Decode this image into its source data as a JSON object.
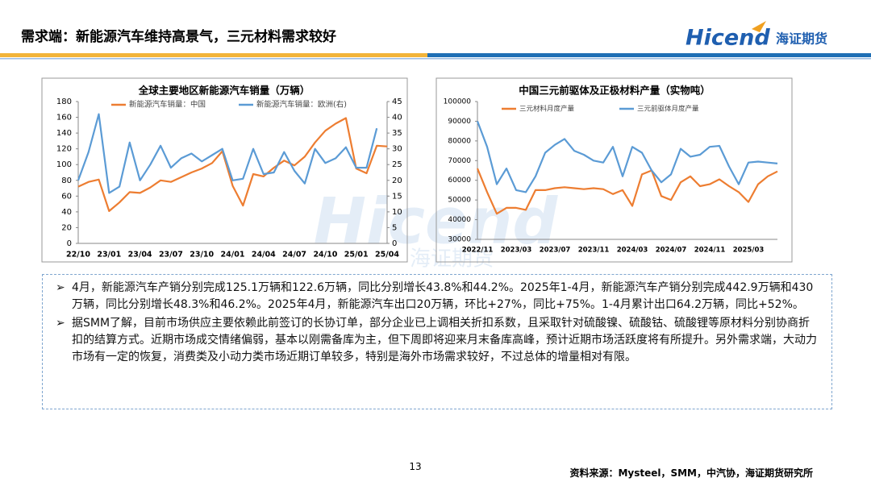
{
  "header": {
    "title": "需求端：新能源汽车维持高景气，三元材料需求较好",
    "logo": "Hicend",
    "logo_cn": "海证期货"
  },
  "watermark": {
    "en": "Hicend",
    "cn": "海证期货"
  },
  "chart_data": [
    {
      "type": "line",
      "title": "全球主要地区新能源汽车销量（万辆）",
      "categories": [
        "22/10",
        null,
        null,
        "23/01",
        null,
        null,
        "23/04",
        null,
        null,
        "23/07",
        null,
        null,
        "23/10",
        null,
        null,
        "24/01",
        null,
        null,
        "24/04",
        null,
        null,
        "24/07",
        null,
        null,
        "24/10",
        null,
        null,
        "25/01",
        null,
        null,
        "25/04"
      ],
      "series": [
        {
          "name": "新能源汽车销量：中国",
          "color": "#ed7d31",
          "values": [
            72,
            78,
            81,
            41,
            52,
            65,
            64,
            71,
            80,
            78,
            84,
            90,
            95,
            102,
            117,
            73,
            48,
            88,
            85,
            96,
            105,
            99,
            110,
            128,
            143,
            152,
            159,
            95,
            89,
            124,
            123
          ]
        },
        {
          "name": "新能源汽车销量：欧洲(右)",
          "color": "#5b9bd5",
          "axis": "y2",
          "values": [
            20,
            29,
            41,
            16,
            18,
            32,
            20,
            25,
            31,
            24,
            27,
            28.5,
            26,
            28,
            30,
            20,
            20.5,
            30,
            22,
            22.5,
            29,
            23,
            19,
            30,
            25.5,
            27,
            30.5,
            24,
            24,
            36.5,
            null
          ]
        }
      ],
      "ylim": [
        0,
        180
      ],
      "yticks": [
        0,
        20,
        40,
        60,
        80,
        100,
        120,
        140,
        160,
        180
      ],
      "y2lim": [
        0,
        45
      ],
      "y2ticks": [
        0,
        5,
        10,
        15,
        20,
        25,
        30,
        35,
        40,
        45
      ],
      "grid": false
    },
    {
      "type": "line",
      "title": "中国三元前驱体及正极材料产量（实物吨）",
      "categories": [
        "2022/11",
        null,
        null,
        null,
        "2023/03",
        null,
        null,
        null,
        "2023/07",
        null,
        null,
        null,
        "2023/11",
        null,
        null,
        null,
        "2024/03",
        null,
        null,
        null,
        "2024/07",
        null,
        null,
        null,
        "2024/11",
        null,
        null,
        null,
        "2025/03",
        null,
        null,
        null
      ],
      "series": [
        {
          "name": "三元材料月度产量",
          "color": "#ed7d31",
          "values": [
            66000,
            54000,
            43000,
            46000,
            46000,
            45000,
            55000,
            55000,
            56000,
            56500,
            56000,
            55500,
            56000,
            55500,
            53000,
            55000,
            47000,
            63000,
            65000,
            52000,
            50000,
            59000,
            62000,
            57000,
            58000,
            60500,
            57000,
            54000,
            49000,
            58000,
            62000,
            64500
          ]
        },
        {
          "name": "三元前驱体月度产量",
          "color": "#5b9bd5",
          "values": [
            90000,
            77000,
            58000,
            66000,
            55000,
            54000,
            62000,
            74000,
            78000,
            81000,
            75000,
            73000,
            70000,
            69000,
            77000,
            62000,
            77000,
            74000,
            65000,
            59000,
            63000,
            76000,
            72000,
            73000,
            77000,
            77500,
            67000,
            58000,
            69000,
            69500,
            69000,
            68500
          ]
        }
      ],
      "ylim": [
        30000,
        100000
      ],
      "yticks": [
        30000,
        40000,
        50000,
        60000,
        70000,
        80000,
        90000,
        100000
      ],
      "grid": false
    }
  ],
  "bullets": [
    "4月，新能源汽车产销分别完成125.1万辆和122.6万辆，同比分别增长43.8%和44.2%。2025年1-4月，新能源汽车产销分别完成442.9万辆和430万辆，同比分别增长48.3%和46.2%。2025年4月，新能源汽车出口20万辆，环比+27%，同比+75%。1-4月累计出口64.2万辆，同比+52%。",
    "据SMM了解，目前市场供应主要依赖此前签订的长协订单，部分企业已上调相关折扣系数，且采取针对硫酸镍、硫酸钴、硫酸锂等原材料分别协商折扣的结算方式。近期市场成交情绪偏弱，基本以刚需备库为主，但下周即将迎来月末备库高峰，预计近期市场活跃度将有所提升。另外需求端，大动力市场有一定的恢复，消费类及小动力类市场近期订单较多，特别是海外市场需求较好，不过总体的增量相对有限。"
  ],
  "footer": {
    "page": 13,
    "source": "资料来源：Mysteel，SMM，中汽协，海证期货研究所"
  }
}
